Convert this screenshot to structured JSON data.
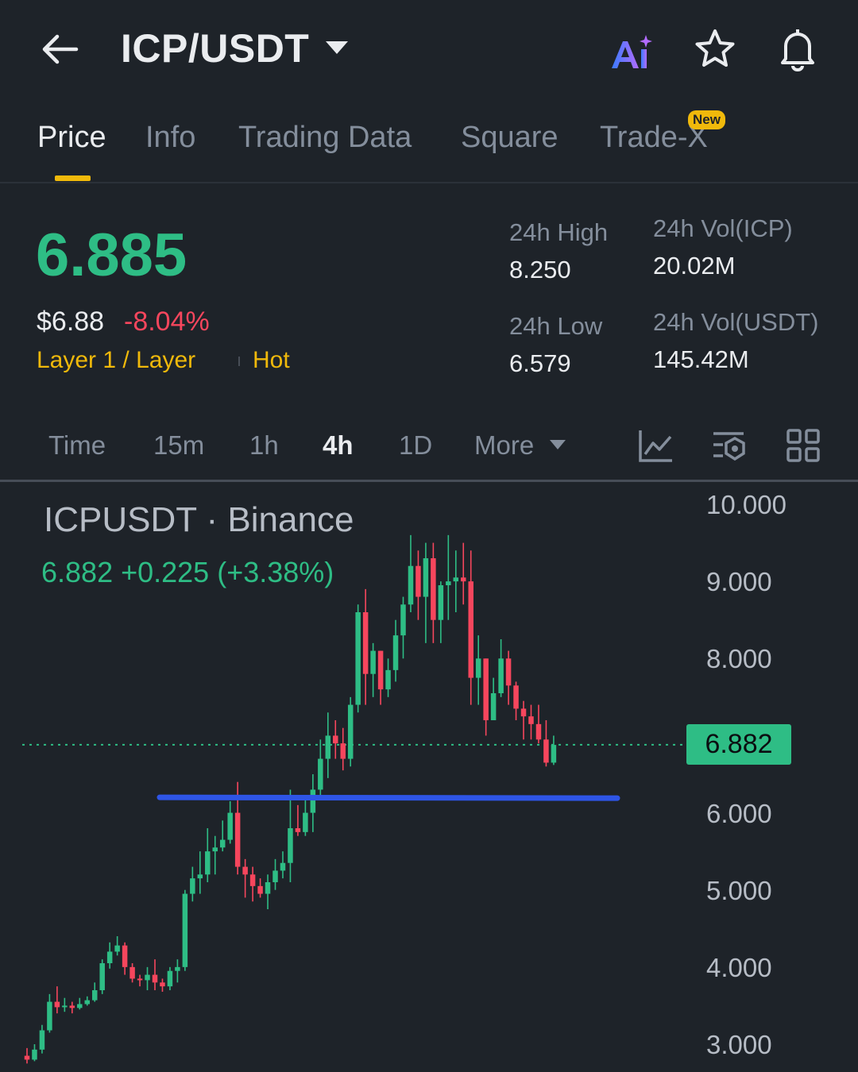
{
  "header": {
    "pair": "ICP/USDT",
    "icons": [
      "back-arrow-icon",
      "ai-icon",
      "star-icon",
      "bell-icon"
    ]
  },
  "tabs": [
    {
      "label": "Price",
      "active": true
    },
    {
      "label": "Info"
    },
    {
      "label": "Trading Data"
    },
    {
      "label": "Square"
    },
    {
      "label": "Trade-X",
      "badge": "New"
    }
  ],
  "ticker": {
    "last_price": "6.885",
    "usd_price": "$6.88",
    "change_pct": "-8.04%",
    "tag_category": "Layer 1 / Layer",
    "tag_hot": "Hot",
    "high_label": "24h High",
    "high_value": "8.250",
    "low_label": "24h Low",
    "low_value": "6.579",
    "vol_base_label": "24h Vol(ICP)",
    "vol_base_value": "20.02M",
    "vol_quote_label": "24h Vol(USDT)",
    "vol_quote_value": "145.42M"
  },
  "intervals": {
    "items": [
      "Time",
      "15m",
      "1h",
      "4h",
      "1D",
      "More"
    ],
    "active": "4h",
    "tools": [
      "indicator-icon",
      "chart-settings-icon",
      "layout-grid-icon"
    ]
  },
  "chart": {
    "symbol_title": "ICPUSDT · Binance",
    "quote": "6.882  +0.225 (+3.38%)",
    "current_price_label": "6.882",
    "y_ticks": [
      "10.000",
      "9.000",
      "8.000",
      "6.000",
      "5.000",
      "4.000",
      "3.000"
    ],
    "colors": {
      "up": "#2ebd85",
      "down": "#f6465d",
      "support_line": "#2e55e6"
    }
  },
  "chart_data": {
    "type": "candlestick",
    "ylim": [
      2.6,
      10.2
    ],
    "support_level": 6.2,
    "current_price": 6.882,
    "candles": [
      [
        2.85,
        2.8,
        2.95,
        2.75
      ],
      [
        2.8,
        2.93,
        3.0,
        2.78
      ],
      [
        2.93,
        3.18,
        3.25,
        2.88
      ],
      [
        3.18,
        3.55,
        3.65,
        3.15
      ],
      [
        3.55,
        3.48,
        3.75,
        3.4
      ],
      [
        3.48,
        3.5,
        3.6,
        3.42
      ],
      [
        3.5,
        3.47,
        3.55,
        3.4
      ],
      [
        3.47,
        3.52,
        3.6,
        3.45
      ],
      [
        3.52,
        3.57,
        3.62,
        3.5
      ],
      [
        3.57,
        3.7,
        3.8,
        3.55
      ],
      [
        3.7,
        4.05,
        4.1,
        3.65
      ],
      [
        4.05,
        4.2,
        4.32,
        3.98
      ],
      [
        4.2,
        4.28,
        4.4,
        4.15
      ],
      [
        4.28,
        4.0,
        4.32,
        3.9
      ],
      [
        4.0,
        3.85,
        4.05,
        3.8
      ],
      [
        3.85,
        3.83,
        3.9,
        3.75
      ],
      [
        3.83,
        3.9,
        4.0,
        3.7
      ],
      [
        3.9,
        3.8,
        4.1,
        3.7
      ],
      [
        3.8,
        3.75,
        3.85,
        3.68
      ],
      [
        3.75,
        3.95,
        4.0,
        3.7
      ],
      [
        3.95,
        4.0,
        4.1,
        3.8
      ],
      [
        4.0,
        4.95,
        5.0,
        3.95
      ],
      [
        4.95,
        5.15,
        5.3,
        4.85
      ],
      [
        5.15,
        5.2,
        5.5,
        4.95
      ],
      [
        5.2,
        5.5,
        5.8,
        5.1
      ],
      [
        5.5,
        5.55,
        5.7,
        5.2
      ],
      [
        5.55,
        5.65,
        5.9,
        5.5
      ],
      [
        5.65,
        6.0,
        6.15,
        5.6
      ],
      [
        6.0,
        5.3,
        6.4,
        5.2
      ],
      [
        5.3,
        5.2,
        5.4,
        4.9
      ],
      [
        5.2,
        5.05,
        5.3,
        4.85
      ],
      [
        5.05,
        4.95,
        5.15,
        4.9
      ],
      [
        4.95,
        5.1,
        5.2,
        4.75
      ],
      [
        5.1,
        5.25,
        5.4,
        5.0
      ],
      [
        5.25,
        5.35,
        5.5,
        5.15
      ],
      [
        5.35,
        5.8,
        6.3,
        5.1
      ],
      [
        5.8,
        5.75,
        6.1,
        5.7
      ],
      [
        5.75,
        6.0,
        6.2,
        5.7
      ],
      [
        6.0,
        6.3,
        6.5,
        5.75
      ],
      [
        6.3,
        6.7,
        6.95,
        6.2
      ],
      [
        6.7,
        7.0,
        7.3,
        6.45
      ],
      [
        7.0,
        6.9,
        7.2,
        6.7
      ],
      [
        6.9,
        6.7,
        7.1,
        6.55
      ],
      [
        6.7,
        7.4,
        7.5,
        6.6
      ],
      [
        7.4,
        8.6,
        8.7,
        7.3
      ],
      [
        8.6,
        7.8,
        8.9,
        7.4
      ],
      [
        7.8,
        8.1,
        8.2,
        7.5
      ],
      [
        8.1,
        7.6,
        8.1,
        7.4
      ],
      [
        7.6,
        7.85,
        8.0,
        7.5
      ],
      [
        7.85,
        8.3,
        8.5,
        7.7
      ],
      [
        8.3,
        8.7,
        8.8,
        8.0
      ],
      [
        8.7,
        9.2,
        9.6,
        8.6
      ],
      [
        9.2,
        8.8,
        9.4,
        8.5
      ],
      [
        8.8,
        9.3,
        9.5,
        8.2
      ],
      [
        9.3,
        8.5,
        9.5,
        8.2
      ],
      [
        8.5,
        8.95,
        9.0,
        8.2
      ],
      [
        8.95,
        9.0,
        9.6,
        8.5
      ],
      [
        9.0,
        9.05,
        9.4,
        8.6
      ],
      [
        9.05,
        9.0,
        9.5,
        8.7
      ],
      [
        9.0,
        7.75,
        9.4,
        7.4
      ],
      [
        7.75,
        8.0,
        8.3,
        7.4
      ],
      [
        8.0,
        7.2,
        8.0,
        7.0
      ],
      [
        7.2,
        7.55,
        7.75,
        7.2
      ],
      [
        7.55,
        8.0,
        8.25,
        7.5
      ],
      [
        8.0,
        7.65,
        8.1,
        7.4
      ],
      [
        7.65,
        7.35,
        7.7,
        7.2
      ],
      [
        7.35,
        7.25,
        7.45,
        6.95
      ],
      [
        7.25,
        7.15,
        7.4,
        6.95
      ],
      [
        7.15,
        6.95,
        7.4,
        6.9
      ],
      [
        6.95,
        6.65,
        7.2,
        6.6
      ],
      [
        6.65,
        6.88,
        7.0,
        6.62
      ]
    ]
  }
}
